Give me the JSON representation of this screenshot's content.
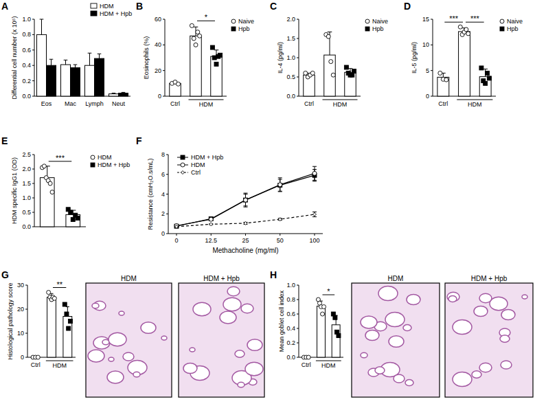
{
  "chart_data": [
    {
      "type": "bar",
      "title": "A",
      "ylabel": "Differential cell number (x 10⁵)",
      "categories": [
        "Eos",
        "Mac",
        "Lymph",
        "Neut"
      ],
      "series": [
        {
          "name": "HDM",
          "color": "#ffffff",
          "values": [
            0.8,
            0.41,
            0.4,
            0.03
          ],
          "errors": [
            0.2,
            0.06,
            0.16,
            0.01
          ]
        },
        {
          "name": "HDM + Hpb",
          "color": "#000000",
          "values": [
            0.4,
            0.37,
            0.49,
            0.04
          ],
          "errors": [
            0.08,
            0.04,
            0.06,
            0.01
          ]
        }
      ],
      "ylim": [
        0,
        1
      ],
      "yticks": [
        {
          "value": 0,
          "label": "0.0"
        },
        0.2,
        0.4,
        0.6,
        0.8,
        {
          "value": 1,
          "label": "1.0"
        }
      ],
      "legend": "upper right"
    },
    {
      "type": "bar",
      "title": "B",
      "ylabel": "Eosinophils (%)",
      "categories": [
        "Ctrl",
        null,
        null
      ],
      "group_label": "HDM",
      "series": [
        {
          "name": "Naive",
          "color": "#ffffff",
          "marker": "circle",
          "values": [
            10,
            47,
            null
          ],
          "errors": [
            1,
            7,
            null
          ],
          "points": [
            [
              10,
              11,
              9.5
            ],
            [
              55,
              45,
              40,
              50,
              47
            ],
            null
          ]
        },
        {
          "name": "Hpb",
          "color": "#000000",
          "marker": "square",
          "values": [
            null,
            null,
            31
          ],
          "errors": [
            null,
            null,
            5
          ],
          "points": [
            null,
            null,
            [
              38,
              30,
              25,
              31,
              32
            ]
          ]
        }
      ],
      "ylim": [
        0,
        60
      ],
      "yticks": [
        0,
        20,
        40,
        60
      ],
      "legend": "upper right",
      "significance": [
        {
          "label": "*",
          "between": [
            1,
            2
          ]
        }
      ]
    },
    {
      "type": "bar",
      "title": "C",
      "ylabel": "IL-4 (pg/ml)",
      "categories": [
        "Ctrl",
        null,
        null
      ],
      "group_label": "HDM",
      "series": [
        {
          "name": "Naive",
          "color": "#ffffff",
          "marker": "circle",
          "values": [
            0.55,
            1.07,
            null
          ],
          "errors": [
            0.05,
            0.6,
            null
          ],
          "points": [
            [
              0.6,
              0.5,
              0.55,
              0.6
            ],
            [
              1.6,
              1.55,
              0.9,
              0.55
            ],
            null
          ]
        },
        {
          "name": "Hpb",
          "color": "#000000",
          "marker": "square",
          "values": [
            null,
            null,
            0.62
          ],
          "errors": [
            null,
            null,
            0.1
          ],
          "points": [
            null,
            null,
            [
              0.75,
              0.6,
              0.55,
              0.55,
              0.65
            ]
          ]
        }
      ],
      "ylim": [
        0,
        2
      ],
      "yticks": [
        {
          "value": 0,
          "label": "0.0"
        },
        0.5,
        {
          "value": 1,
          "label": "1.0"
        },
        1.5,
        {
          "value": 2,
          "label": "2.0"
        }
      ],
      "legend": "upper right"
    },
    {
      "type": "bar",
      "title": "D",
      "ylabel": "IL-5 (pg/ml)",
      "categories": [
        "Ctrl",
        null,
        null
      ],
      "group_label": "HDM",
      "series": [
        {
          "name": "Naive",
          "color": "#ffffff",
          "marker": "circle",
          "values": [
            3.7,
            12.6,
            null
          ],
          "errors": [
            0.8,
            0.7,
            null
          ],
          "points": [
            [
              4.5,
              3.3,
              3.2
            ],
            [
              13.5,
              12,
              12.5,
              13,
              12.2
            ],
            null
          ]
        },
        {
          "name": "Hpb",
          "color": "#000000",
          "marker": "square",
          "values": [
            null,
            null,
            3.8
          ],
          "errors": [
            null,
            null,
            1.5
          ],
          "points": [
            null,
            null,
            [
              5.5,
              3,
              2.5,
              4.5,
              3.5
            ]
          ]
        }
      ],
      "ylim": [
        0,
        15
      ],
      "yticks": [
        0,
        5,
        10,
        15
      ],
      "legend": "upper right",
      "significance": [
        {
          "label": "***",
          "between": [
            0,
            1
          ]
        },
        {
          "label": "***",
          "between": [
            1,
            2
          ]
        }
      ]
    },
    {
      "type": "bar",
      "title": "E",
      "ylabel": "HDM specific IgG1 (OD)",
      "categories": [
        null,
        null
      ],
      "series": [
        {
          "name": "HDM",
          "color": "#ffffff",
          "marker": "circle",
          "values": [
            1.7,
            null
          ],
          "errors": [
            0.4,
            null
          ],
          "points": [
            [
              2.05,
              2.1,
              1.7,
              1.6,
              1.5,
              1.2
            ],
            null
          ]
        },
        {
          "name": "HDM + Hpb",
          "color": "#000000",
          "marker": "square",
          "values": [
            null,
            0.42
          ],
          "errors": [
            null,
            0.15
          ],
          "points": [
            null,
            [
              0.6,
              0.5,
              0.25,
              0.4,
              0.3
            ]
          ]
        }
      ],
      "ylim": [
        0,
        2.5
      ],
      "yticks": [
        {
          "value": 0,
          "label": "0.0"
        },
        0.5,
        {
          "value": 1,
          "label": "1.0"
        },
        1.5,
        {
          "value": 2,
          "label": "2.0"
        },
        2.5
      ],
      "legend": "upper right",
      "significance": [
        {
          "label": "***",
          "between": [
            0,
            1
          ]
        }
      ]
    },
    {
      "type": "line",
      "title": "F",
      "xlabel": "Methacholine (mg/ml)",
      "ylabel": "Resistance (cmH₂O.s/mL)",
      "categories": [
        "0",
        "12.5",
        "25",
        "50",
        "100"
      ],
      "series": [
        {
          "name": "HDM + Hpb",
          "color": "#000000",
          "marker": "square",
          "line_style": "solid",
          "values": [
            0.75,
            1.5,
            3.4,
            4.9,
            5.9
          ],
          "errors": [
            0.1,
            0.15,
            0.7,
            0.6,
            0.6
          ]
        },
        {
          "name": "HDM",
          "color": "#ffffff",
          "marker": "circle",
          "line_style": "solid",
          "values": [
            0.8,
            1.45,
            3.4,
            4.95,
            6.1
          ],
          "errors": [
            0.1,
            0.1,
            0.6,
            0.7,
            0.7
          ]
        },
        {
          "name": "Ctrl",
          "color": "#ffffff",
          "marker": "diamond",
          "line_style": "dashed",
          "values": [
            0.7,
            0.95,
            1.05,
            1.45,
            1.95
          ],
          "errors": [
            0.05,
            0.05,
            0.1,
            0.1,
            0.25
          ]
        }
      ],
      "ylim": [
        0,
        8
      ],
      "yticks": [
        0,
        2,
        4,
        6,
        8
      ],
      "legend": "upper left"
    },
    {
      "type": "bar",
      "title": "G",
      "ylabel": "Histological pathology score",
      "categories": [
        "Ctrl",
        null,
        null
      ],
      "group_label": "HDM",
      "series": [
        {
          "color": "#ffffff",
          "marker": "circle",
          "values": [
            0,
            25,
            null
          ],
          "errors": [
            0,
            1.5,
            null
          ],
          "points": [
            [
              0,
              0,
              0
            ],
            [
              27,
              25,
              24,
              25,
              24.5
            ],
            null
          ]
        },
        {
          "color": "#000000",
          "marker": "square",
          "values": [
            null,
            null,
            17
          ],
          "errors": [
            null,
            null,
            4
          ],
          "points": [
            null,
            null,
            [
              22,
              18,
              12,
              15
            ]
          ]
        }
      ],
      "ylim": [
        0,
        30
      ],
      "yticks": [
        0,
        10,
        20,
        30
      ],
      "significance": [
        {
          "label": "**",
          "between": [
            1,
            2
          ]
        }
      ],
      "image_labels": [
        "HDM",
        "HDM + Hpb"
      ]
    },
    {
      "type": "bar",
      "title": "H",
      "ylabel": "Mean goblet cell index",
      "categories": [
        "Ctrl",
        null,
        null
      ],
      "group_label": "HDM",
      "series": [
        {
          "color": "#ffffff",
          "marker": "circle",
          "values": [
            0,
            0.71,
            null
          ],
          "errors": [
            0,
            0.07,
            null
          ],
          "points": [
            [
              0,
              0,
              0
            ],
            [
              0.8,
              0.75,
              0.7,
              0.6,
              0.7
            ],
            null
          ]
        },
        {
          "color": "#000000",
          "marker": "square",
          "values": [
            null,
            null,
            0.45
          ],
          "errors": [
            null,
            null,
            0.13
          ],
          "points": [
            null,
            null,
            [
              0.6,
              0.55,
              0.35,
              0.3
            ]
          ]
        }
      ],
      "ylim": [
        0,
        1
      ],
      "yticks": [
        {
          "value": 0,
          "label": "0.0"
        },
        0.2,
        0.4,
        0.6,
        0.8,
        {
          "value": 1,
          "label": "1.0"
        }
      ],
      "significance": [
        {
          "label": "*",
          "between": [
            1,
            2
          ]
        }
      ],
      "image_labels": [
        "HDM",
        "HDM + Hpb"
      ]
    }
  ]
}
